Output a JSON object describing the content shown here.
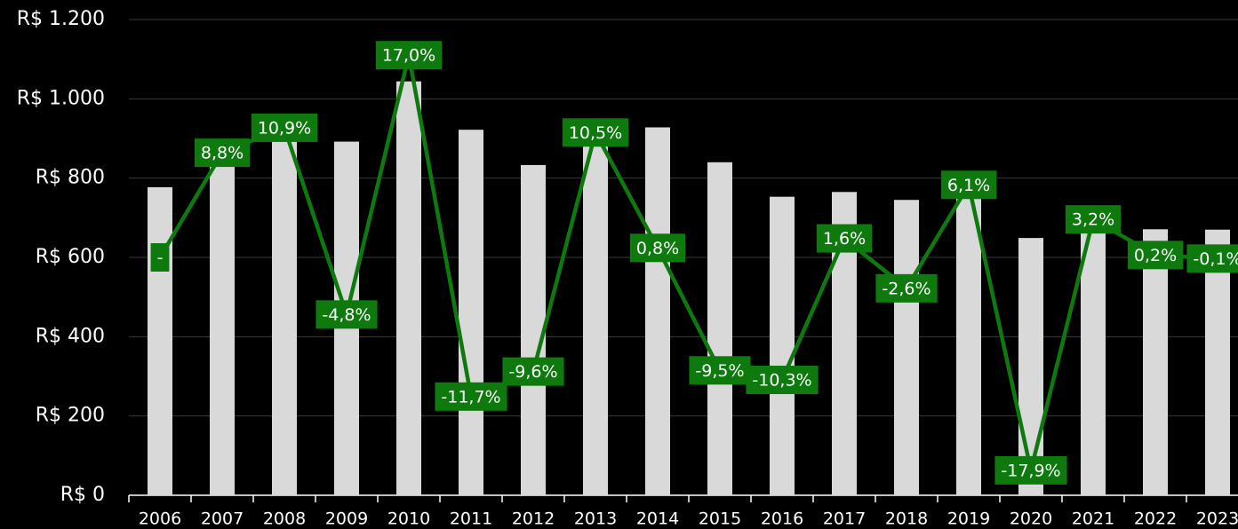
{
  "chart_data": {
    "type": "bar_line",
    "categories": [
      "2006",
      "2007",
      "2008",
      "2009",
      "2010",
      "2011",
      "2012",
      "2013",
      "2014",
      "2015",
      "2016",
      "2017",
      "2018",
      "2019",
      "2020",
      "2021",
      "2022",
      "2023"
    ],
    "series": [
      {
        "type": "bar",
        "color": "#d9d9d9",
        "values": [
          777,
          845,
          937,
          892,
          1044,
          922,
          833,
          921,
          928,
          840,
          753,
          765,
          745,
          791,
          649,
          670,
          671,
          670
        ]
      },
      {
        "type": "line",
        "axis": "y2",
        "color": "#0e7a0e",
        "values": [
          0,
          8.8,
          10.9,
          -4.8,
          17.0,
          -11.7,
          -9.6,
          10.5,
          0.8,
          -9.5,
          -10.3,
          1.6,
          -2.6,
          6.1,
          -17.9,
          3.2,
          0.2,
          -0.1
        ],
        "value_labels": [
          "-",
          "8,8%",
          "10,9%",
          "-4,8%",
          "17,0%",
          "-11,7%",
          "-9,6%",
          "10,5%",
          "0,8%",
          "-9,5%",
          "-10,3%",
          "1,6%",
          "-2,6%",
          "6,1%",
          "-17,9%",
          "3,2%",
          "0,2%",
          "-0,1%"
        ]
      }
    ],
    "ylim": [
      0,
      1200
    ],
    "yticks": [
      {
        "value": 0,
        "label": "R$ 0"
      },
      {
        "value": 200,
        "label": "R$ 200"
      },
      {
        "value": 400,
        "label": "R$ 400"
      },
      {
        "value": 600,
        "label": "R$ 600"
      },
      {
        "value": 800,
        "label": "R$ 800"
      },
      {
        "value": 1000,
        "label": "R$ 1.000"
      },
      {
        "value": 1200,
        "label": "R$ 1.200"
      }
    ],
    "y2lim": [
      -20,
      20
    ],
    "grid": true
  }
}
